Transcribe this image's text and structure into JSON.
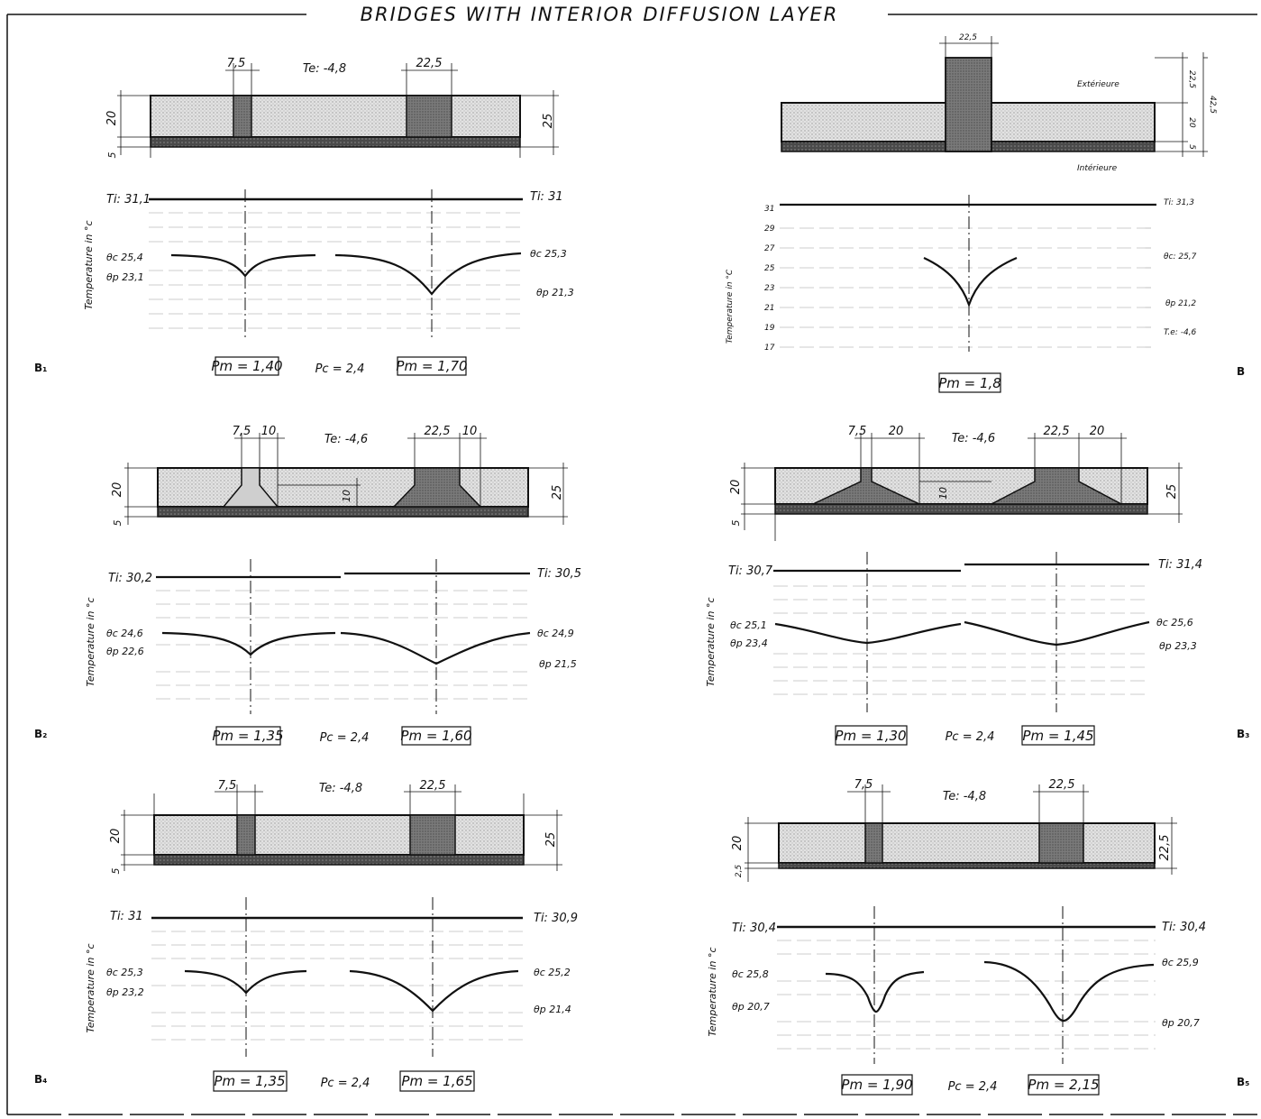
{
  "title": "BRIDGES WITH INTERIOR DIFFUSION LAYER",
  "panels": {
    "b1": {
      "id": "B₁",
      "te": "Te: -4,8",
      "dim_a": "7,5",
      "dim_b": "22,5",
      "dim_h1": "20",
      "dim_h2": "5",
      "dim_total": "25",
      "ti_left": "Ti: 31,1",
      "ti_right": "Ti: 31",
      "oc_left": "θc 25,4",
      "op_left": "θp 23,1",
      "oc_right": "θc 25,3",
      "op_right": "θp 21,3",
      "ylabel": "Temperature in °c",
      "pm_left": "Pm = 1,40",
      "pc": "Pc = 2,4",
      "pm_right": "Pm = 1,70"
    },
    "b": {
      "id": "B",
      "dim_top": "22,5",
      "ext": "Extérieure",
      "int": "Intérieure",
      "dim_r1": "22,5",
      "dim_r2": "20",
      "dim_r3": "5",
      "dim_r_total": "42,5",
      "ylabel": "Temperature in °C",
      "ticks": [
        "31",
        "29",
        "27",
        "25",
        "23",
        "21",
        "19",
        "17"
      ],
      "ti": "Ti: 31,3",
      "oc": "θc: 25,7",
      "op": "θp 21,2",
      "te": "T.e: -4,6",
      "pm": "Pm = 1,8"
    },
    "b2": {
      "id": "B₂",
      "te": "Te: -4,6",
      "dim_a": "7,5",
      "dim_a2": "10",
      "dim_b": "22,5",
      "dim_b2": "10",
      "dim_h1": "20",
      "dim_h2": "5",
      "dim_total": "25",
      "dim_inner": "10",
      "ti_left": "Ti: 30,2",
      "ti_right": "Ti: 30,5",
      "oc_left": "θc 24,6",
      "op_left": "θp 22,6",
      "oc_right": "θc 24,9",
      "op_right": "θp 21,5",
      "ylabel": "Temperature in °c",
      "pm_left": "Pm = 1,35",
      "pc": "Pc = 2,4",
      "pm_right": "Pm = 1,60"
    },
    "b3": {
      "id": "B₃",
      "te": "Te: -4,6",
      "dim_a": "7,5",
      "dim_a2": "20",
      "dim_b": "22,5",
      "dim_b2": "20",
      "dim_h1": "20",
      "dim_h2": "5",
      "dim_total": "25",
      "dim_inner": "10",
      "ti_left": "Ti: 30,7",
      "ti_right": "Ti: 31,4",
      "oc_left": "θc 25,1",
      "op_left": "θp 23,4",
      "oc_right": "θc 25,6",
      "op_right": "θp 23,3",
      "ylabel": "Temperature in °c",
      "pm_left": "Pm = 1,30",
      "pc": "Pc = 2,4",
      "pm_right": "Pm = 1,45"
    },
    "b4": {
      "id": "B₄",
      "te": "Te: -4,8",
      "dim_a": "7,5",
      "dim_b": "22,5",
      "dim_h1": "20",
      "dim_h2": "5",
      "dim_total": "25",
      "ti_left": "Ti: 31",
      "ti_right": "Ti: 30,9",
      "oc_left": "θc 25,3",
      "op_left": "θp 23,2",
      "oc_right": "θc 25,2",
      "op_right": "θp 21,4",
      "ylabel": "Temperature in °c",
      "pm_left": "Pm = 1,35",
      "pc": "Pc = 2,4",
      "pm_right": "Pm = 1,65"
    },
    "b5": {
      "id": "B₅",
      "te": "Te: -4,8",
      "dim_a": "7,5",
      "dim_b": "22,5",
      "dim_h1": "20",
      "dim_h2": "2,5",
      "dim_total": "22,5",
      "ti_left": "Ti: 30,4",
      "ti_right": "Ti: 30,4",
      "oc_left": "θc 25,8",
      "op_left": "θp 20,7",
      "oc_right": "θc 25,9",
      "op_right": "θp 20,7",
      "ylabel": "Temperature in °c",
      "pm_left": "Pm = 1,90",
      "pc": "Pc = 2,4",
      "pm_right": "Pm = 2,15"
    }
  },
  "colors": {
    "ink": "#111111",
    "concrete_light": "#d4d4d4",
    "concrete_dark": "#6e6e6e",
    "slab": "#3a3a3a"
  }
}
